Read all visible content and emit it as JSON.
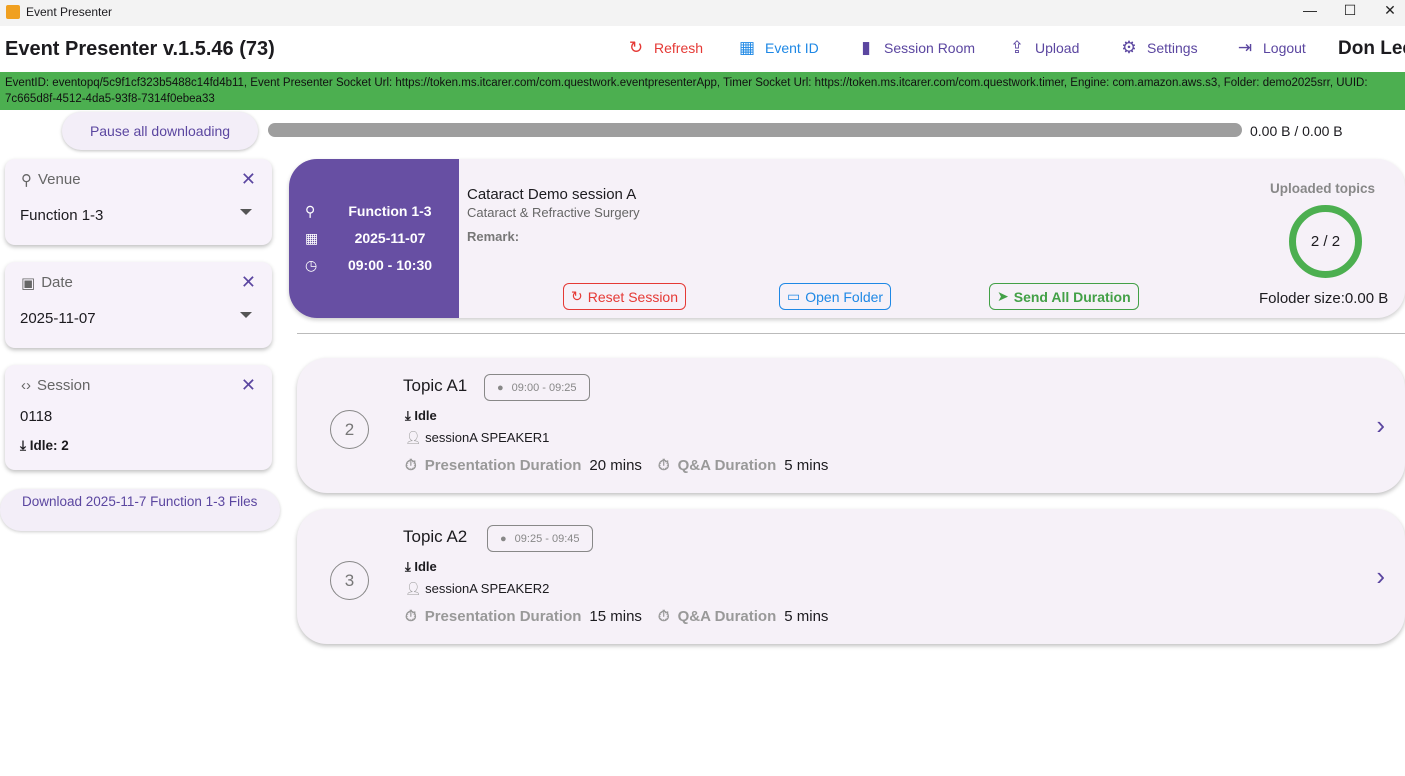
{
  "window": {
    "title": "Event Presenter",
    "minimize": "—",
    "maximize": "☐",
    "close": "✕"
  },
  "appbar": {
    "title": "Event Presenter v.1.5.46 (73)",
    "user": "Don Lee",
    "nav": [
      {
        "label": "Refresh",
        "icon": "↻",
        "color": "#e53935"
      },
      {
        "label": "Event ID",
        "icon": "▦",
        "color": "#1e88e5"
      },
      {
        "label": "Session Room",
        "icon": "▮",
        "color": "#5b46a0"
      },
      {
        "label": "Upload",
        "icon": "⇪",
        "color": "#5b46a0"
      },
      {
        "label": "Settings",
        "icon": "⚙",
        "color": "#5b46a0"
      },
      {
        "label": "Logout",
        "icon": "⇥",
        "color": "#5b46a0"
      }
    ]
  },
  "info": "EventID: eventopq/5c9f1cf323b5488c14fd4b11, Event Presenter Socket Url: https://token.ms.itcarer.com/com.questwork.eventpresenterApp, Timer Socket Url: https://token.ms.itcarer.com/com.questwork.timer, Engine: com.amazon.aws.s3, Folder: demo2025srr, UUID: 7c665d8f-4512-4da5-93f8-7314f0ebea33",
  "download": {
    "pause_label": "Pause all downloading",
    "progress": 0,
    "progress_text": "0.00 B / 0.00 B"
  },
  "filters": {
    "venue": {
      "label": "Venue",
      "value": "Function 1-3"
    },
    "date": {
      "label": "Date",
      "value": "2025-11-07"
    },
    "session": {
      "label": "Session",
      "value": "0118",
      "status": "Idle: 2"
    }
  },
  "download_files_label": "Download 2025-11-7 Function 1-3 Files",
  "session": {
    "venue": "Function 1-3",
    "date": "2025-11-07",
    "time": "09:00 - 10:30",
    "title": "Cataract Demo session A",
    "subtitle": "Cataract & Refractive Surgery",
    "remark_label": "Remark:",
    "reset_label": "Reset Session",
    "open_folder_label": "Open Folder",
    "send_label": "Send All Duration",
    "uploaded_label": "Uploaded topics",
    "uploaded": "2 / 2",
    "uploaded_fraction": 1,
    "folder_size": "Foloder size:0.00 B"
  },
  "topics": [
    {
      "number": "2",
      "title": "Topic A1",
      "time": "09:00 - 09:25",
      "status": "Idle",
      "speaker": "sessionA SPEAKER1",
      "pres_label": "Presentation Duration",
      "pres": "20 mins",
      "qa_label": "Q&A Duration",
      "qa": "5 mins"
    },
    {
      "number": "3",
      "title": "Topic A2",
      "time": "09:25 - 09:45",
      "status": "Idle",
      "speaker": "sessionA SPEAKER2",
      "pres_label": "Presentation Duration",
      "pres": "15 mins",
      "qa_label": "Q&A Duration",
      "qa": "5 mins"
    }
  ]
}
